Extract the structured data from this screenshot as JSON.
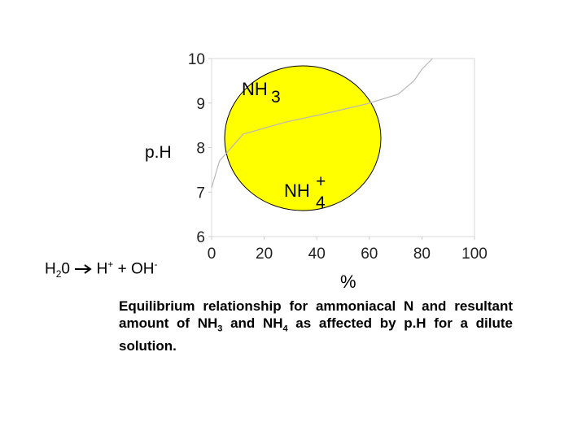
{
  "chart_data": {
    "type": "line",
    "x": [
      0,
      3,
      12,
      28,
      43,
      59,
      71,
      77,
      80,
      84
    ],
    "series": [
      {
        "color": "#b8b8b8",
        "values": [
          7.1,
          7.7,
          8.3,
          8.57,
          8.76,
          8.98,
          9.2,
          9.5,
          9.76,
          10
        ]
      }
    ],
    "xlim": [
      0,
      100
    ],
    "ylim": [
      6,
      10
    ],
    "xticks": [
      0,
      20,
      40,
      60,
      80,
      100
    ],
    "yticks": [
      6,
      7,
      8,
      9,
      10
    ],
    "xlabel": "%",
    "ylabel": "p.H",
    "annotations": {
      "nh3": {
        "text": "NH",
        "sub": "3"
      },
      "nh4": {
        "text": "NH",
        "sup": "+",
        "sub": "4"
      }
    }
  },
  "equation": {
    "h": "H",
    "two": "2",
    "zero": "0",
    "hplus": "H",
    "plus_sup": "+",
    "oh": "+ OH",
    "minus_sup": "-"
  },
  "caption": {
    "part1": "Equilibrium relationship for ammoniacal N and resultant amount of NH",
    "sub1": "3",
    "part2": " and NH",
    "sub2": "4",
    "part3": " as affected by p.H for a dilute solution."
  }
}
